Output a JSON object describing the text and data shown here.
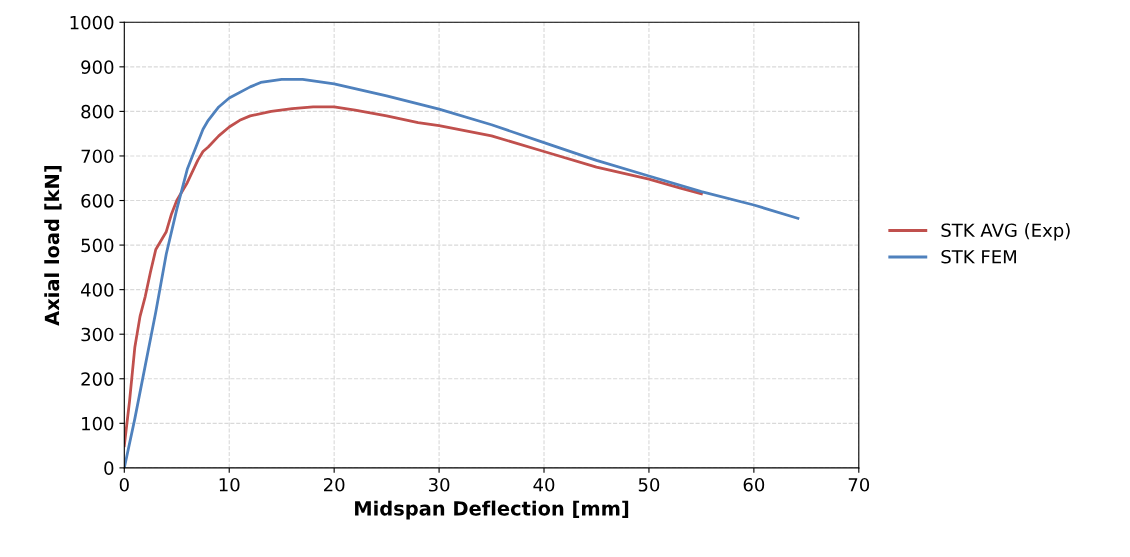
{
  "chart_data": {
    "type": "line",
    "xlabel": "Midspan Deflection [mm]",
    "ylabel": "Axial load [kN]",
    "xlim": [
      0,
      70
    ],
    "xticks": [
      0,
      10,
      20,
      30,
      40,
      50,
      60,
      70
    ],
    "ylim": [
      0,
      1000
    ],
    "yticks": [
      0,
      100,
      200,
      300,
      400,
      500,
      600,
      700,
      800,
      900,
      1000
    ],
    "grid": true,
    "legend": "right",
    "marker": "none",
    "line_style": "solid",
    "series": [
      {
        "name": "STK AVG (Exp)",
        "color": "#c0504d",
        "x": [
          0,
          0.5,
          1,
          1.5,
          2,
          2.5,
          3,
          4,
          4.5,
          5,
          6,
          7,
          7.5,
          8,
          9,
          10,
          11,
          12,
          14,
          16,
          18,
          20,
          22,
          25,
          28,
          30,
          35,
          40,
          45,
          50,
          53,
          55
        ],
        "values": [
          50,
          150,
          270,
          340,
          385,
          440,
          490,
          530,
          570,
          600,
          640,
          690,
          710,
          720,
          745,
          765,
          780,
          790,
          800,
          806,
          810,
          810,
          803,
          790,
          775,
          768,
          745,
          710,
          675,
          648,
          628,
          615
        ]
      },
      {
        "name": "STK FEM",
        "color": "#4f81bd",
        "x": [
          0,
          1,
          2,
          3,
          4,
          5,
          6,
          7,
          7.5,
          8,
          9,
          10,
          12,
          13,
          15,
          17,
          20,
          25,
          30,
          35,
          40,
          45,
          50,
          55,
          60,
          64.2
        ],
        "values": [
          0,
          110,
          230,
          350,
          480,
          580,
          670,
          730,
          760,
          780,
          810,
          830,
          855,
          865,
          872,
          872,
          862,
          835,
          805,
          770,
          730,
          690,
          655,
          620,
          590,
          560
        ]
      }
    ]
  }
}
